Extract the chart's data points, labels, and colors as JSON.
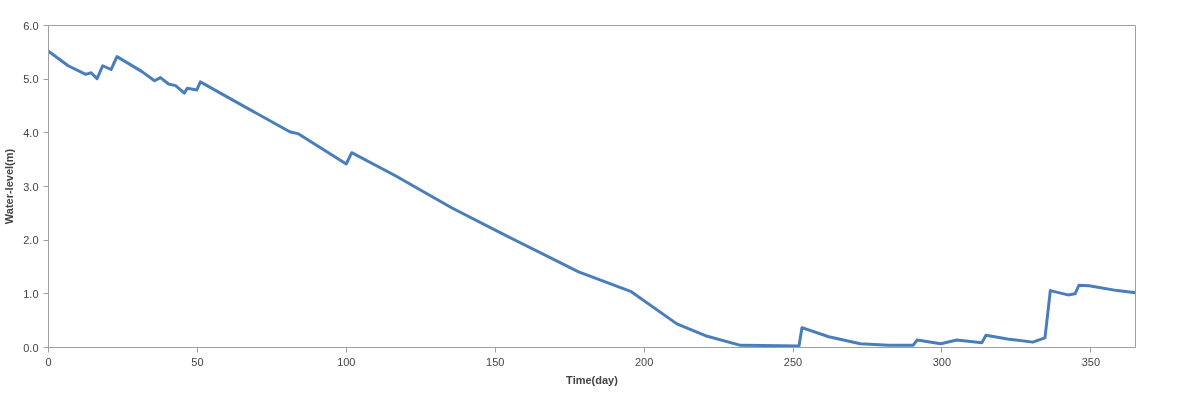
{
  "chart_data": {
    "type": "line",
    "xlabel": "Time(day)",
    "ylabel": "Water-level(m)",
    "x": [
      0,
      6.6,
      12.5,
      14.3,
      16.3,
      18.2,
      21,
      23,
      31.4,
      35.6,
      37.6,
      40.3,
      42.7,
      45.6,
      46.6,
      49.8,
      51,
      62.2,
      81,
      84,
      100,
      101.8,
      116.5,
      135.5,
      152,
      178,
      195.7,
      211,
      220.6,
      232.4,
      252,
      253,
      262,
      272.6,
      282,
      290.3,
      291.7,
      299.6,
      305,
      313.4,
      314.8,
      322,
      330.5,
      334.6,
      336.4,
      342.3,
      344.7,
      346,
      349.4,
      358.9,
      365
    ],
    "series": [
      {
        "color": "#4a7ebb",
        "values": [
          5.52,
          5.25,
          5.09,
          5.12,
          5.01,
          5.25,
          5.18,
          5.42,
          5.14,
          4.97,
          5.03,
          4.91,
          4.88,
          4.74,
          4.83,
          4.8,
          4.95,
          4.6,
          4.02,
          3.98,
          3.42,
          3.63,
          3.2,
          2.6,
          2.13,
          1.41,
          1.04,
          0.44,
          0.22,
          0.04,
          0.03,
          0.37,
          0.2,
          0.07,
          0.04,
          0.04,
          0.14,
          0.07,
          0.14,
          0.09,
          0.23,
          0.16,
          0.1,
          0.18,
          1.06,
          0.98,
          1.0,
          1.16,
          1.15,
          1.06,
          1.02
        ]
      }
    ],
    "xlim": [
      0,
      365
    ],
    "xticks": [
      0,
      50,
      100,
      150,
      200,
      250,
      300,
      350
    ],
    "ylim": [
      0,
      6
    ],
    "yticks": [
      {
        "value": 0,
        "label": "0.0"
      },
      {
        "value": 1,
        "label": "1.0"
      },
      {
        "value": 2,
        "label": "2.0"
      },
      {
        "value": 3,
        "label": "3.0"
      },
      {
        "value": 4,
        "label": "4.0"
      },
      {
        "value": 5,
        "label": "5.0"
      },
      {
        "value": 6,
        "label": "6.0"
      }
    ],
    "grid": false,
    "marker": "none",
    "line_style": "solid"
  }
}
